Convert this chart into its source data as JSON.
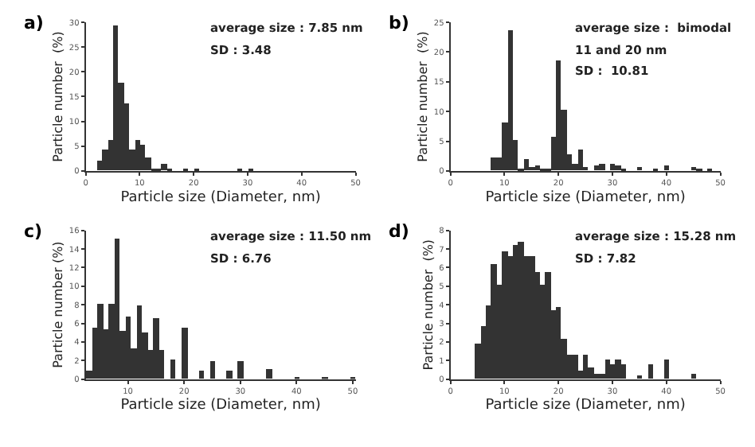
{
  "chart_data": [
    {
      "type": "histogram",
      "annotations": [
        "a)",
        "average size : 7.85 nm",
        "SD : 3.48"
      ],
      "xlabel": "Particle size (Diameter, nm)",
      "ylabel": "Particle number  (%)",
      "color": "#333333",
      "bins": [
        2,
        3,
        4,
        5,
        6,
        7,
        8,
        9,
        10,
        11,
        12,
        13,
        14,
        15,
        16,
        17,
        18,
        19,
        20,
        21,
        22,
        23,
        24,
        25,
        26,
        27,
        28,
        29,
        30,
        31
      ],
      "values": [
        2.2,
        4.4,
        6.1,
        29.5,
        17.8,
        13.5,
        4.4,
        6.1,
        5.3,
        2.6,
        0.4,
        0.6,
        1.3,
        0.4,
        0,
        0,
        0.4,
        0,
        0.4,
        0,
        0,
        0,
        0,
        0,
        0,
        0,
        0.4,
        0,
        0.4
      ],
      "xlim": [
        0,
        50
      ],
      "xticks": [
        0,
        10,
        20,
        30,
        40,
        50
      ],
      "ylim": [
        0,
        30
      ],
      "yticks": [
        0,
        5,
        10,
        15,
        20,
        25,
        30
      ]
    },
    {
      "type": "histogram",
      "annotations": [
        "b)",
        "average size :  bimodal",
        "11 and 20 nm",
        "SD :  10.81"
      ],
      "xlabel": "Particle size (Diameter, nm)",
      "ylabel": "Particle number  (%)",
      "color": "#333333",
      "bins": [
        7.5,
        8.5,
        9.5,
        10.5,
        11.5,
        12.5,
        13.5,
        14.5,
        15.5,
        16.5,
        17.5,
        18.5,
        19.5,
        20.5,
        21.5,
        22.5,
        23.5,
        24.5,
        25.5,
        26.5,
        27.5,
        28.5,
        29.5,
        30.5,
        31.5,
        32.5,
        33.5,
        34.5,
        35.5,
        36.5,
        37.5,
        38.5,
        39.5,
        40.5,
        41.5,
        42.5,
        43.5,
        44.5,
        45.5,
        46.5,
        47.5,
        48.5
      ],
      "values": [
        2.3,
        2.3,
        8.1,
        23.7,
        5.1,
        0.3,
        2.0,
        0.7,
        1.0,
        0.3,
        0.3,
        5.7,
        18.5,
        10.2,
        2.7,
        1.3,
        3.6,
        0.6,
        0,
        1.0,
        1.3,
        0,
        1.3,
        0.8,
        0.3,
        0,
        0,
        0.6,
        0,
        0,
        0.3,
        0,
        0.8,
        0,
        0,
        0,
        0,
        0.6,
        0.4,
        0,
        0.4
      ],
      "xlim": [
        0,
        50
      ],
      "xticks": [
        0,
        10,
        20,
        30,
        40,
        50
      ],
      "ylim": [
        0,
        25
      ],
      "yticks": [
        0,
        5,
        10,
        15,
        20,
        25
      ]
    },
    {
      "type": "histogram",
      "annotations": [
        "c)",
        "average size : 11.50 nm",
        "SD : 6.76"
      ],
      "xlabel": "Particle size (Diameter, nm)",
      "ylabel": "Particle number (%)",
      "color": "#333333",
      "bins": [
        2.5,
        3.5,
        4.5,
        5.5,
        6.5,
        7.5,
        8.5,
        9.5,
        10.5,
        11.5,
        12.5,
        13.5,
        14.5,
        15.5,
        16.5,
        17.5,
        18.5,
        19.5,
        20.5,
        21.5,
        22.5,
        23.5,
        24.5,
        25.5,
        26.5,
        27.5,
        28.5,
        29.5,
        30.5,
        31.5,
        32.5,
        33.5,
        34.5,
        35.5,
        36.5,
        37.5,
        38.5,
        39.5,
        40.5,
        41.5,
        42.5,
        43.5,
        44.5,
        45.5,
        46.5,
        47.5,
        48.5,
        49.5,
        50.5
      ],
      "values": [
        1.0,
        5.6,
        8.2,
        5.3,
        8.1,
        15.2,
        5.2,
        6.8,
        3.4,
        7.9,
        5.0,
        3.2,
        6.5,
        3.2,
        0,
        2.1,
        0,
        5.6,
        0,
        0,
        0.9,
        0,
        2.0,
        0,
        0,
        0.9,
        0,
        2.0,
        0,
        0,
        0,
        0,
        1.1,
        0,
        0,
        0,
        0,
        0.1,
        0,
        0,
        0,
        0,
        0.1,
        0,
        0,
        0,
        0,
        0.1
      ],
      "xlim": [
        2.5,
        50.5
      ],
      "xticks": [
        10,
        20,
        30,
        40,
        50
      ],
      "ylim": [
        0,
        16
      ],
      "yticks": [
        0,
        2,
        4,
        6,
        8,
        10,
        12,
        14,
        16
      ]
    },
    {
      "type": "histogram",
      "annotations": [
        "d)",
        "average size : 15.28 nm",
        "SD : 7.82"
      ],
      "xlabel": "Particle size (Diameter, nm)",
      "ylabel": "Particle number  (%)",
      "color": "#333333",
      "bins": [
        4.5,
        5.5,
        6.5,
        7.5,
        8.5,
        9.5,
        10.5,
        11.5,
        12.5,
        13.5,
        14.5,
        15.5,
        16.5,
        17.5,
        18.5,
        19.5,
        20.5,
        21.5,
        22.5,
        23.5,
        24.5,
        25.5,
        26.5,
        27.5,
        28.5,
        29.5,
        30.5,
        31.5,
        32.5,
        33.5,
        34.5,
        35.5,
        36.5,
        37.5,
        38.5,
        39.5,
        40.5,
        41.5,
        42.5,
        43.5,
        44.5,
        45.5
      ],
      "values": [
        1.9,
        2.9,
        4.0,
        6.2,
        5.1,
        6.9,
        6.6,
        7.2,
        7.4,
        6.6,
        6.6,
        5.8,
        5.1,
        5.8,
        3.7,
        3.9,
        2.2,
        1.3,
        1.3,
        0.5,
        1.3,
        0.6,
        0.3,
        0.3,
        1.1,
        0.8,
        1.1,
        0.8,
        0,
        0,
        0.2,
        0,
        0.8,
        0,
        0,
        1.1,
        0,
        0,
        0,
        0,
        0.3
      ],
      "xlim": [
        0,
        50
      ],
      "xticks": [
        0,
        10,
        20,
        30,
        40,
        50
      ],
      "ylim": [
        0,
        8
      ],
      "yticks": [
        0,
        1,
        2,
        3,
        4,
        5,
        6,
        7,
        8
      ]
    }
  ]
}
